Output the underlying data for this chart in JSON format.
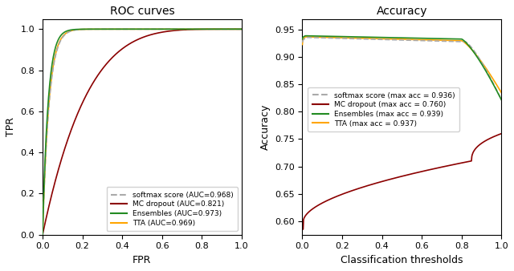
{
  "roc_title": "ROC curves",
  "acc_title": "Accuracy",
  "roc_xlabel": "FPR",
  "roc_ylabel": "TPR",
  "acc_xlabel": "Classification thresholds",
  "acc_ylabel": "Accuracy",
  "colors": {
    "softmax": "#aaaaaa",
    "mc_dropout": "#8b0000",
    "ensembles": "#228b22",
    "tta": "#ffa500"
  },
  "legend_roc": [
    "softmax score (AUC=0.968)",
    "MC dropout (AUC=0.821)",
    "Ensembles (AUC=0.973)",
    "TTA (AUC=0.969)"
  ],
  "legend_acc": [
    "softmax score (max acc = 0.936)",
    "MC dropout (max acc = 0.760)",
    "Ensembles (max acc = 0.939)",
    "TTA (max acc = 0.937)"
  ],
  "roc_ylim": [
    0,
    1.05
  ],
  "roc_xlim": [
    0,
    1.0
  ],
  "acc_ylim": [
    0.575,
    0.97
  ],
  "acc_xlim": [
    0,
    1.0
  ],
  "figsize": [
    6.4,
    3.38
  ],
  "dpi": 100
}
